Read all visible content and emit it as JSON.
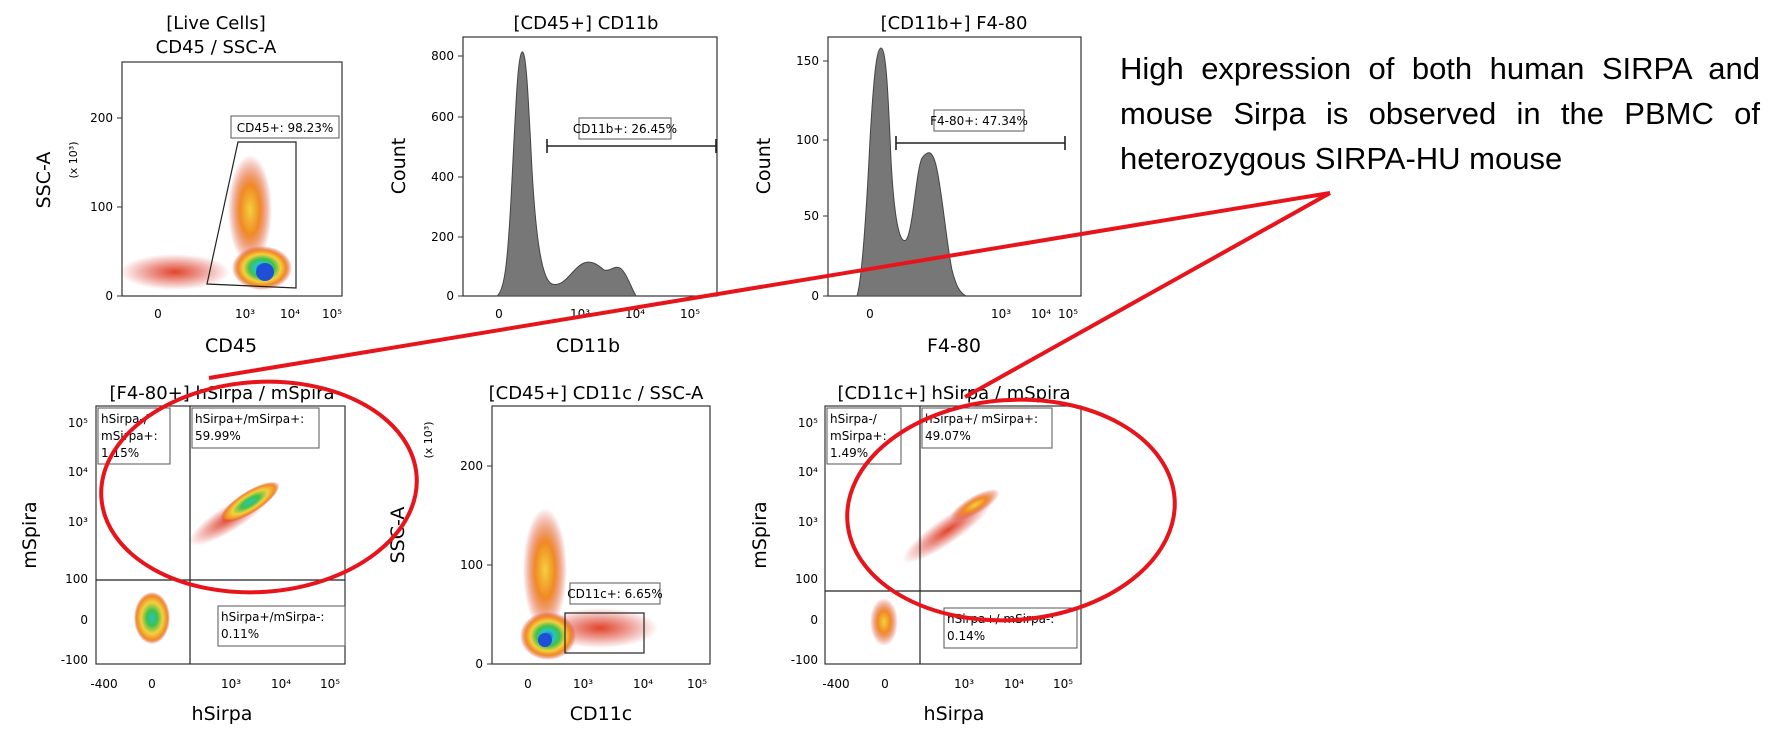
{
  "annotation": "High expression of both human SIRPA and mouse Sirpa is observed in the PBMC of heterozygous SIRPA-HU  mouse",
  "colors": {
    "highlight": "#e8141b",
    "histogram_fill": "#777777",
    "density_low": "#c0392b",
    "density_mid": "#f4d03f",
    "density_high": "#1f4fd6"
  },
  "chart_data": [
    {
      "id": "p1",
      "type": "scatter",
      "title_line1": "[Live Cells]",
      "title_line2": "CD45 / SSC-A",
      "xlabel": "CD45",
      "ylabel": "SSC-A",
      "yunit": "(x 10³)",
      "xticks": [
        "0",
        "10³",
        "10⁴",
        "10⁵"
      ],
      "yticks": [
        "0",
        "100",
        "200"
      ],
      "gates": [
        {
          "label": "CD45+: 98.23%",
          "shape": "polygon"
        }
      ]
    },
    {
      "id": "p2",
      "type": "histogram",
      "title_line1": "[CD45+] CD11b",
      "xlabel": "CD11b",
      "ylabel": "Count",
      "xticks": [
        "0",
        "10³",
        "10⁴",
        "10⁵"
      ],
      "yticks": [
        "0",
        "200",
        "400",
        "600",
        "800"
      ],
      "ylim": [
        0,
        830
      ],
      "peaks": [
        {
          "position": "0-10²",
          "count": 800
        },
        {
          "position": "10³-10⁴",
          "count": 110
        }
      ],
      "gates": [
        {
          "label": "CD11b+: 26.45%",
          "shape": "range"
        }
      ]
    },
    {
      "id": "p3",
      "type": "histogram",
      "title_line1": "[CD11b+] F4-80",
      "xlabel": "F4-80",
      "ylabel": "Count",
      "xticks": [
        "0",
        "10³",
        "10⁴",
        "10⁵"
      ],
      "yticks": [
        "0",
        "50",
        "100",
        "150"
      ],
      "ylim": [
        0,
        165
      ],
      "peaks": [
        {
          "position": "0-10²",
          "count": 156
        },
        {
          "position": "10²-10³",
          "count": 88
        }
      ],
      "gates": [
        {
          "label": "F4-80+: 47.34%",
          "shape": "range"
        }
      ]
    },
    {
      "id": "p4",
      "type": "scatter",
      "title_line1": "[F4-80+] hSirpa / mSpira",
      "xlabel": "hSirpa",
      "ylabel": "mSpira",
      "xticks": [
        "-400",
        "0",
        "10³",
        "10⁴",
        "10⁵"
      ],
      "yticks": [
        "-100",
        "0",
        "100",
        "10³",
        "10⁴",
        "10⁵"
      ],
      "gates": [
        {
          "label_line1": "hSirpa-/",
          "label_line2": "mSirpa+:",
          "label_line3": "1.15%",
          "shape": "quadrant"
        },
        {
          "label_line1": "hSirpa+/mSirpa+:",
          "label_line2": "59.99%",
          "shape": "quadrant"
        },
        {
          "label_line1": "hSirpa+/mSirpa-:",
          "label_line2": "0.11%",
          "shape": "quadrant"
        }
      ]
    },
    {
      "id": "p5",
      "type": "scatter",
      "title_line1": "[CD45+] CD11c / SSC-A",
      "xlabel": "CD11c",
      "ylabel": "SSC-A",
      "yunit": "(x 10³)",
      "xticks": [
        "0",
        "10³",
        "10⁴",
        "10⁵"
      ],
      "yticks": [
        "0",
        "100",
        "200"
      ],
      "gates": [
        {
          "label": "CD11c+: 6.65%",
          "shape": "rectangle"
        }
      ]
    },
    {
      "id": "p6",
      "type": "scatter",
      "title_line1": "[CD11c+] hSirpa / mSpira",
      "xlabel": "hSirpa",
      "ylabel": "mSpira",
      "xticks": [
        "-400",
        "0",
        "10³",
        "10⁴",
        "10⁵"
      ],
      "yticks": [
        "-100",
        "0",
        "100",
        "10³",
        "10⁴",
        "10⁵"
      ],
      "gates": [
        {
          "label_line1": "hSirpa-/",
          "label_line2": "mSirpa+:",
          "label_line3": "1.49%",
          "shape": "quadrant"
        },
        {
          "label_line1": "hSirpa+/ mSirpa+:",
          "label_line2": "49.07%",
          "shape": "quadrant"
        },
        {
          "label_line1": "hSirpa+/ mSirpa-:",
          "label_line2": "0.14%",
          "shape": "quadrant"
        }
      ]
    }
  ]
}
